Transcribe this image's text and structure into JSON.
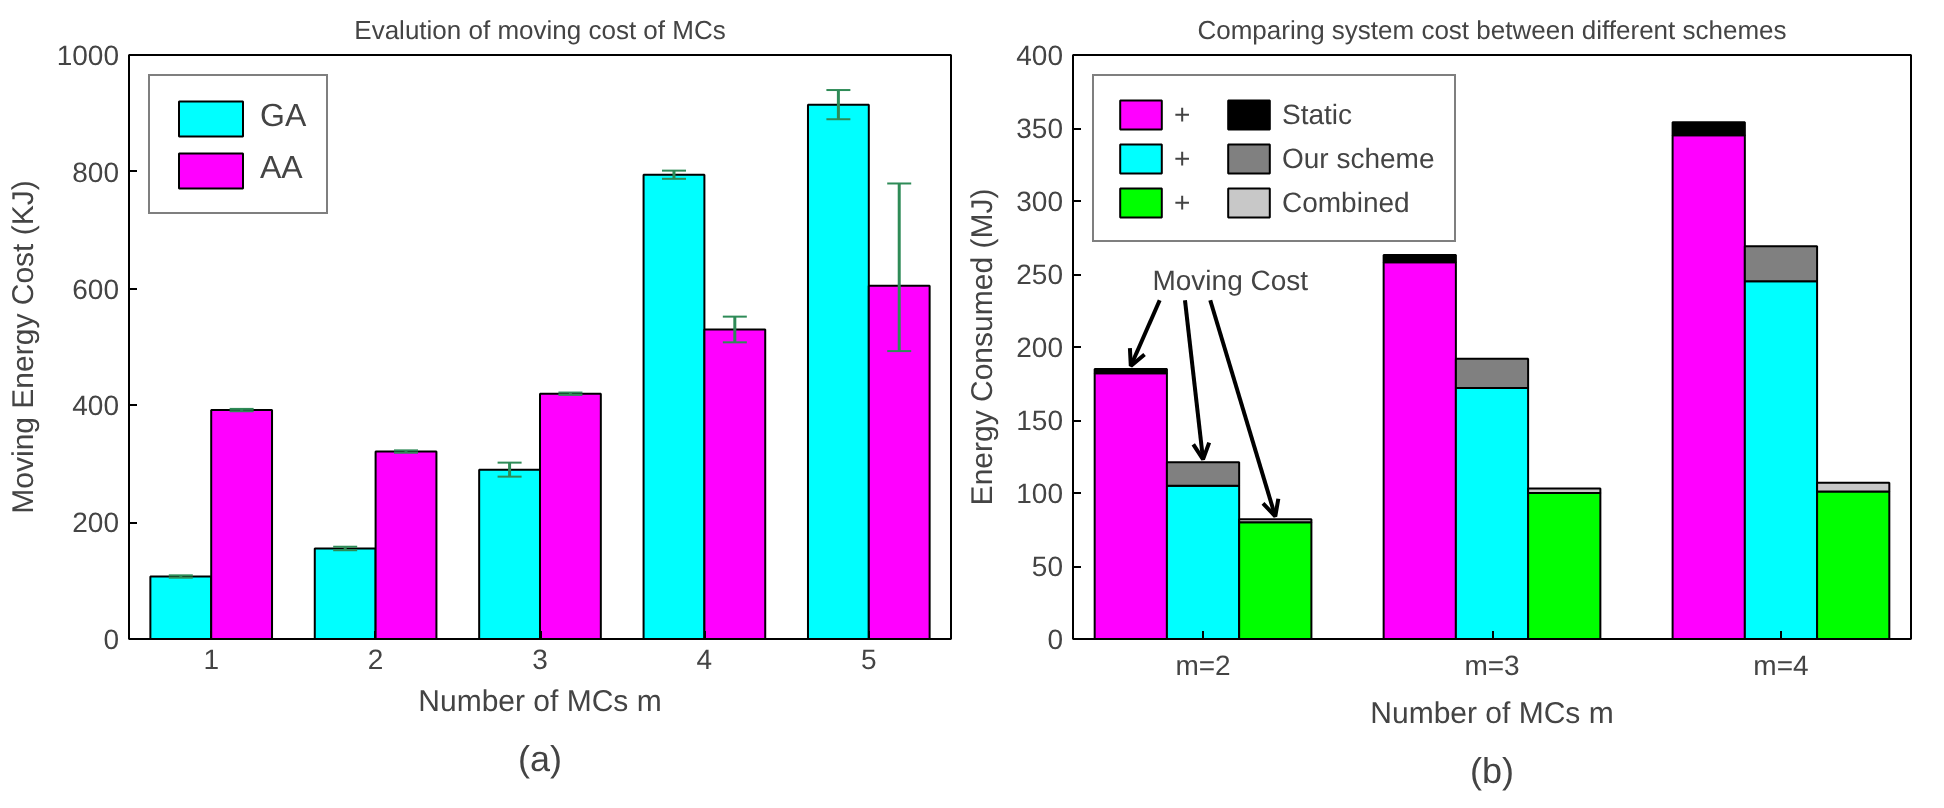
{
  "chart_data": [
    {
      "type": "bar",
      "title": "Evalution of moving cost of MCs",
      "xlabel": "Number of MCs m",
      "ylabel": "Moving Energy Cost (KJ)",
      "annotations": [
        "(a)"
      ],
      "categories": [
        "1",
        "2",
        "3",
        "4",
        "5"
      ],
      "ylim": [
        0,
        1000
      ],
      "yticks": [
        0,
        200,
        400,
        600,
        800,
        1000
      ],
      "grid": false,
      "legend": "top left",
      "series": [
        {
          "name": "GA",
          "color": "#00ffff",
          "values": [
            107,
            155,
            290,
            795,
            915
          ],
          "errors": [
            2,
            3,
            12,
            7,
            25
          ]
        },
        {
          "name": "AA",
          "color": "#ff00ff",
          "values": [
            392,
            321,
            420,
            530,
            605
          ],
          "errors": [
            2,
            2,
            2,
            22,
            [
              493,
              780
            ]
          ]
        }
      ]
    },
    {
      "type": "bar",
      "stacked": true,
      "title": "Comparing system cost between different schemes",
      "xlabel": "Number of MCs m",
      "ylabel": "Energy Consumed (MJ)",
      "annotations": [
        {
          "text": "Moving Cost",
          "x": "m=2",
          "y": 121
        },
        "+",
        "+",
        "+",
        "(b)"
      ],
      "categories": [
        null,
        "m=2",
        null,
        null,
        null,
        "m=3",
        null,
        null,
        null,
        "m=4",
        null
      ],
      "ylim": [
        0,
        400
      ],
      "yticks": [
        0,
        50,
        100,
        150,
        200,
        250,
        300,
        350,
        400
      ],
      "grid": false,
      "legend": "top left",
      "series": [
        {
          "color": "#ff00ff",
          "values": [
            182,
            null,
            null,
            null,
            258,
            null,
            null,
            null,
            345,
            null,
            null
          ]
        },
        {
          "color": "#00ffff",
          "values": [
            null,
            105,
            null,
            null,
            null,
            172,
            null,
            null,
            null,
            245,
            null
          ]
        },
        {
          "color": "#00ff00",
          "values": [
            null,
            null,
            80,
            null,
            null,
            null,
            100,
            null,
            null,
            null,
            101
          ]
        },
        {
          "name": "Static",
          "color": "#000000",
          "values": [
            3,
            null,
            null,
            null,
            5,
            null,
            null,
            null,
            9,
            null,
            null
          ]
        },
        {
          "name": "Our scheme",
          "color": "#808080",
          "values": [
            null,
            16,
            null,
            null,
            null,
            20,
            null,
            null,
            null,
            24,
            null
          ]
        },
        {
          "name": "Combined",
          "color": "#c8c8c8",
          "values": [
            null,
            null,
            2,
            null,
            null,
            null,
            3,
            null,
            null,
            null,
            6
          ]
        }
      ]
    }
  ]
}
